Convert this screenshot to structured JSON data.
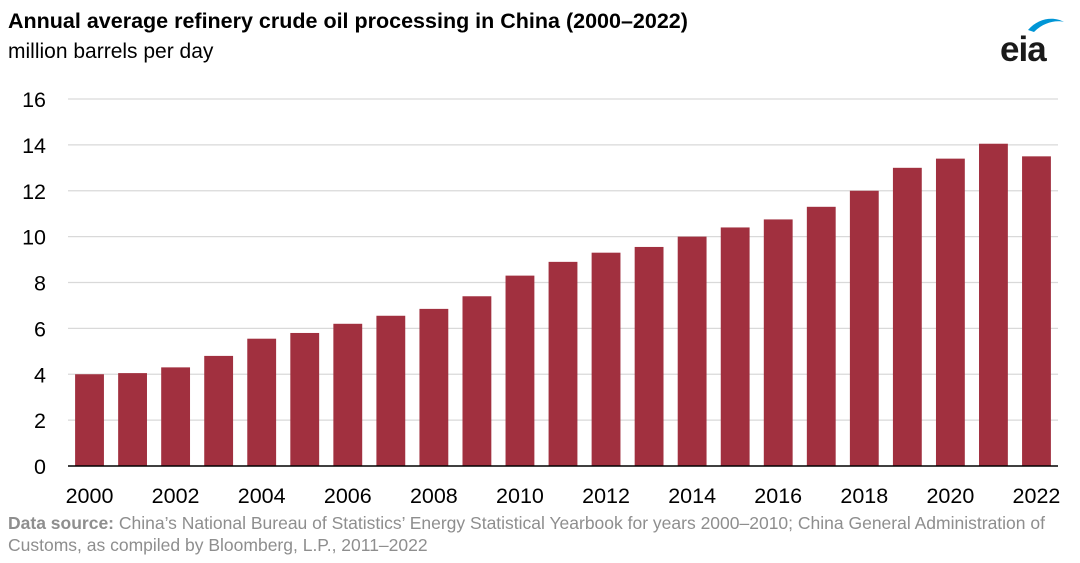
{
  "header": {
    "title": "Annual average refinery crude oil processing in China (2000–2022)",
    "subtitle": "million barrels per day"
  },
  "logo": {
    "text": "eia",
    "icon": "eia-swoosh-icon",
    "color": "#0096d6"
  },
  "source": {
    "label": "Data source:",
    "text": " China’s National Bureau of Statistics’ Energy Statistical Yearbook for years 2000–2010; China General Administration of Customs, as compiled by Bloomberg, L.P., 2011–2022"
  },
  "chart_data": {
    "type": "bar",
    "title": "Annual average refinery crude oil processing in China (2000–2022)",
    "ylabel": "million barrels per day",
    "xlabel": "",
    "categories": [
      "2000",
      "2001",
      "2002",
      "2003",
      "2004",
      "2005",
      "2006",
      "2007",
      "2008",
      "2009",
      "2010",
      "2011",
      "2012",
      "2013",
      "2014",
      "2015",
      "2016",
      "2017",
      "2018",
      "2019",
      "2020",
      "2021",
      "2022"
    ],
    "values": [
      4.0,
      4.05,
      4.3,
      4.8,
      5.55,
      5.8,
      6.2,
      6.55,
      6.85,
      7.4,
      8.3,
      8.9,
      9.3,
      9.55,
      10.0,
      10.4,
      10.75,
      11.3,
      12.0,
      13.0,
      13.4,
      14.05,
      13.5
    ],
    "x_tick_labels": [
      "2000",
      "2002",
      "2004",
      "2006",
      "2008",
      "2010",
      "2012",
      "2014",
      "2016",
      "2018",
      "2020",
      "2022"
    ],
    "y_ticks": [
      "0",
      "2",
      "4",
      "6",
      "8",
      "10",
      "12",
      "14",
      "16"
    ],
    "ylim": [
      0,
      16
    ],
    "grid": true,
    "bar_color": "#a1303f",
    "grid_color": "#d9d9d9",
    "axis_color": "#000000"
  }
}
